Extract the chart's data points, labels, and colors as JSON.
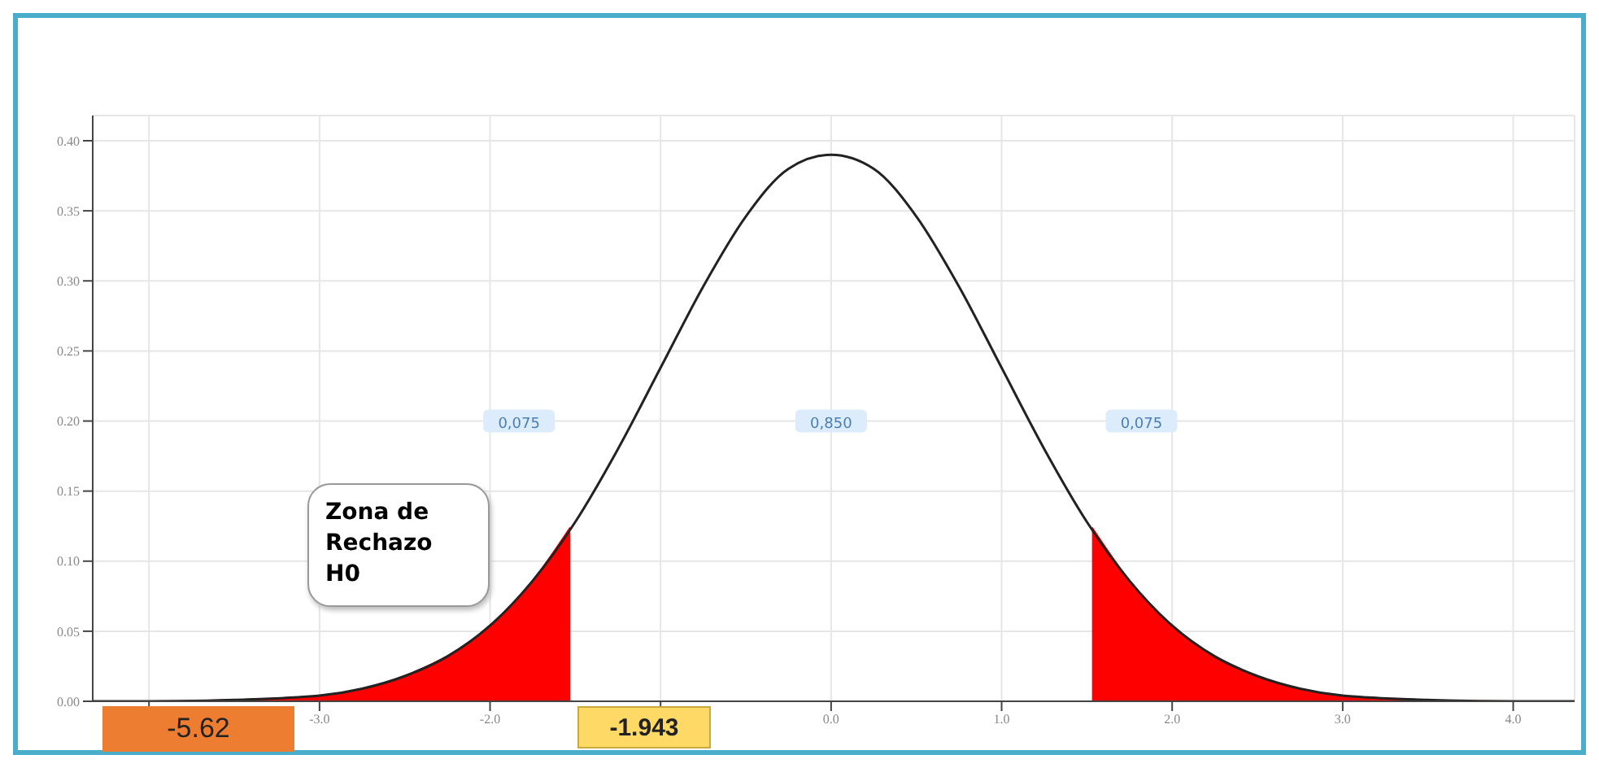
{
  "chart_data": {
    "type": "line",
    "series": [
      {
        "type": "area",
        "color": "#ff0000",
        "x": [
          -4.33,
          -4,
          -3.5,
          -3,
          -2.5,
          -2,
          -1.75,
          -1.53
        ],
        "values": [
          0,
          0,
          0.001,
          0.004,
          0.018,
          0.054,
          0.086,
          0.124
        ]
      },
      {
        "type": "area",
        "color": "#ff0000",
        "x": [
          1.53,
          1.75,
          2,
          2.5,
          3,
          3.5,
          4,
          4.36
        ],
        "values": [
          0.124,
          0.086,
          0.054,
          0.018,
          0.004,
          0.001,
          0,
          0
        ]
      },
      {
        "color": "#222222",
        "x": [
          -4.33,
          -4,
          -3.5,
          -3,
          -2.75,
          -2.5,
          -2.25,
          -2,
          -1.75,
          -1.5,
          -1.25,
          -1,
          -0.75,
          -0.5,
          -0.25,
          0,
          0.25,
          0.5,
          0.75,
          1,
          1.25,
          1.5,
          1.75,
          2,
          2.25,
          2.5,
          2.75,
          3,
          3.5,
          4,
          4.36
        ],
        "values": [
          0,
          0,
          0.001,
          0.004,
          0.009,
          0.018,
          0.032,
          0.054,
          0.086,
          0.128,
          0.18,
          0.238,
          0.296,
          0.346,
          0.38,
          0.39,
          0.38,
          0.346,
          0.296,
          0.238,
          0.18,
          0.128,
          0.086,
          0.054,
          0.032,
          0.018,
          0.009,
          0.004,
          0.001,
          0,
          0
        ]
      }
    ],
    "xlim": [
      -4.33,
      4.36
    ],
    "xticks": [
      {
        "value": -4,
        "label": null
      },
      {
        "value": -3,
        "label": "-3.0"
      },
      {
        "value": -2,
        "label": "-2.0"
      },
      {
        "value": -1,
        "label": null
      },
      {
        "value": 0,
        "label": "0.0"
      },
      {
        "value": 1,
        "label": "1.0"
      },
      {
        "value": 2,
        "label": "2.0"
      },
      {
        "value": 3,
        "label": "3.0"
      },
      {
        "value": 4,
        "label": "4.0"
      }
    ],
    "ylim": [
      0,
      0.418
    ],
    "yticks": [
      {
        "value": 0,
        "label": "0.00"
      },
      {
        "value": 0.05,
        "label": "0.05"
      },
      {
        "value": 0.1,
        "label": "0.10"
      },
      {
        "value": 0.15,
        "label": "0.15"
      },
      {
        "value": 0.2,
        "label": "0.20"
      },
      {
        "value": 0.25,
        "label": "0.25"
      },
      {
        "value": 0.3,
        "label": "0.30"
      },
      {
        "value": 0.35,
        "label": "0.35"
      },
      {
        "value": 0.4,
        "label": "0.40"
      }
    ],
    "grid": true,
    "marker": "none",
    "annotations": [
      {
        "text": "0,075",
        "x": -1.83,
        "y": 0.2
      },
      {
        "text": "0,850",
        "x": 0,
        "y": 0.2
      },
      {
        "text": "0,075",
        "x": 1.82,
        "y": 0.2
      },
      "Zona de Rechazo H0",
      "-5.62",
      "-1.943"
    ]
  }
}
